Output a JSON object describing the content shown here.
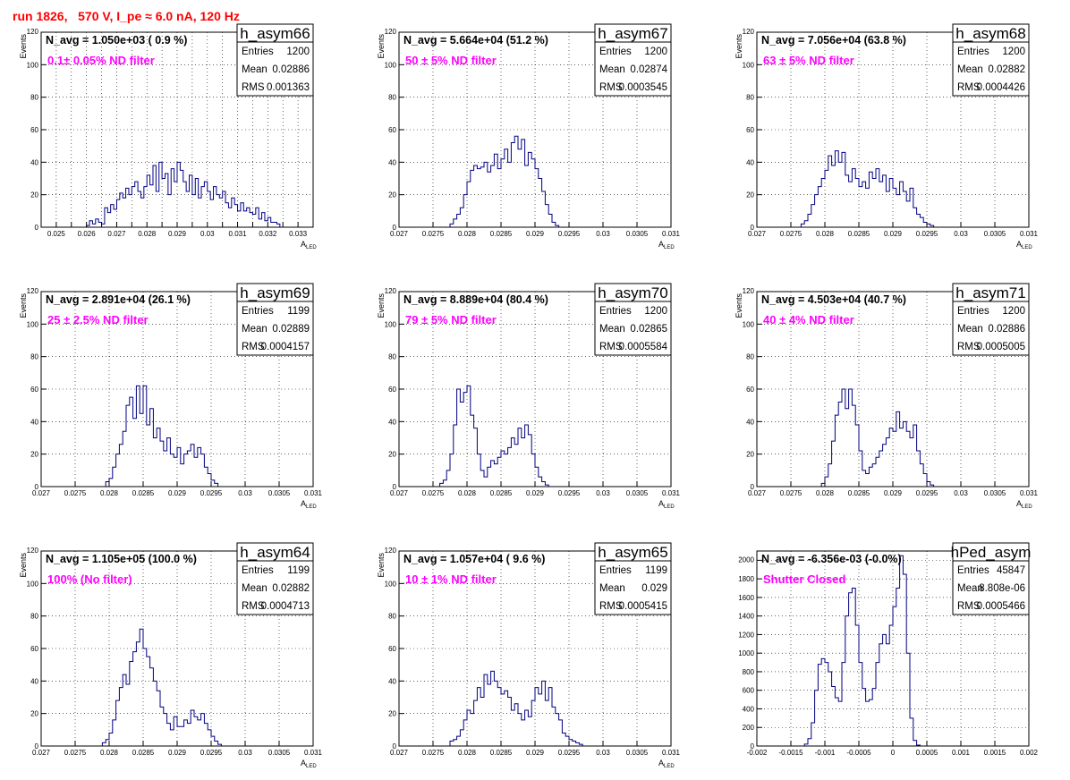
{
  "run_title": "run 1826,   570 V, I_pe ≈ 6.0 nA, 120 Hz",
  "stat_labels": {
    "entries": "Entries",
    "mean": "Mean",
    "rms": "RMS"
  },
  "chart_data": [
    {
      "type": "histogram",
      "name": "h_asym66",
      "navg": "N_avg = 1.050e+03 ( 0.9 %)",
      "filter": "0.1± 0.05% ND filter",
      "entries": "1200",
      "mean": "0.02886",
      "rms": "0.001363",
      "xlabel": "A",
      "xlabel_sub": "LED",
      "ylabel": "Events",
      "xlim": [
        0.0245,
        0.0335
      ],
      "ylim": [
        0,
        120
      ],
      "xticks": [
        0.025,
        0.0255,
        0.026,
        0.0265,
        0.027,
        0.0275,
        0.028,
        0.0285,
        0.029,
        0.0295,
        0.03,
        0.0305,
        0.031,
        0.0315,
        0.032,
        0.0325,
        0.033
      ],
      "xticklabels": [
        "0.025",
        "",
        "0.026",
        "",
        "0.027",
        "",
        "0.028",
        "",
        "0.029",
        "",
        "0.03",
        "",
        "0.031",
        "",
        "0.032",
        "",
        "0.033"
      ],
      "yticks": [
        0,
        20,
        40,
        60,
        80,
        100,
        120
      ],
      "bins": {
        "start": 0.026,
        "width": 0.0001,
        "counts": [
          1,
          4,
          2,
          5,
          3,
          2,
          12,
          9,
          14,
          11,
          17,
          21,
          18,
          24,
          20,
          25,
          28,
          22,
          18,
          25,
          32,
          26,
          38,
          22,
          40,
          30,
          33,
          20,
          36,
          28,
          40,
          35,
          28,
          22,
          32,
          20,
          30,
          18,
          25,
          28,
          22,
          17,
          25,
          20,
          18,
          22,
          15,
          12,
          18,
          14,
          10,
          15,
          10,
          12,
          9,
          8,
          12,
          5,
          9,
          4,
          6,
          3,
          3,
          2
        ]
      }
    },
    {
      "type": "histogram",
      "name": "h_asym67",
      "navg": "N_avg = 5.664e+04 (51.2 %)",
      "filter": "50 ± 5% ND filter",
      "entries": "1200",
      "mean": "0.02874",
      "rms": "0.0003545",
      "xlabel": "A",
      "xlabel_sub": "LED",
      "ylabel": "Events",
      "xlim": [
        0.027,
        0.031
      ],
      "ylim": [
        0,
        120
      ],
      "xticks": [
        0.027,
        0.0275,
        0.028,
        0.0285,
        0.029,
        0.0295,
        0.03,
        0.0305,
        0.031
      ],
      "xticklabels": [
        "0.027",
        "0.0275",
        "0.028",
        "0.0285",
        "0.029",
        "0.0295",
        "0.03",
        "0.0305",
        "0.031"
      ],
      "yticks": [
        0,
        20,
        40,
        60,
        80,
        100,
        120
      ],
      "bins": {
        "start": 0.02775,
        "width": 5e-05,
        "counts": [
          2,
          5,
          8,
          12,
          20,
          28,
          35,
          38,
          36,
          37,
          40,
          34,
          38,
          45,
          36,
          42,
          48,
          40,
          52,
          56,
          48,
          54,
          38,
          46,
          42,
          36,
          30,
          22,
          14,
          8,
          3,
          1
        ]
      }
    },
    {
      "type": "histogram",
      "name": "h_asym68",
      "navg": "N_avg = 7.056e+04 (63.8 %)",
      "filter": "63 ± 5% ND filter",
      "entries": "1200",
      "mean": "0.02882",
      "rms": "0.0004426",
      "xlabel": "A",
      "xlabel_sub": "LED",
      "ylabel": "Events",
      "xlim": [
        0.027,
        0.031
      ],
      "ylim": [
        0,
        120
      ],
      "xticks": [
        0.027,
        0.0275,
        0.028,
        0.0285,
        0.029,
        0.0295,
        0.03,
        0.0305,
        0.031
      ],
      "xticklabels": [
        "0.027",
        "0.0275",
        "0.028",
        "0.0285",
        "0.029",
        "0.0295",
        "0.03",
        "0.0305",
        "0.031"
      ],
      "yticks": [
        0,
        20,
        40,
        60,
        80,
        100,
        120
      ],
      "bins": {
        "start": 0.02765,
        "width": 5e-05,
        "counts": [
          2,
          4,
          8,
          14,
          20,
          25,
          30,
          35,
          44,
          38,
          47,
          40,
          46,
          32,
          28,
          36,
          30,
          25,
          28,
          24,
          34,
          30,
          36,
          28,
          32,
          22,
          30,
          24,
          20,
          28,
          22,
          16,
          24,
          12,
          8,
          6,
          3,
          2,
          1
        ]
      }
    },
    {
      "type": "histogram",
      "name": "h_asym69",
      "navg": "N_avg = 2.891e+04 (26.1 %)",
      "filter": "25 ± 2.5% ND filter",
      "entries": "1199",
      "mean": "0.02889",
      "rms": "0.0004157",
      "xlabel": "A",
      "xlabel_sub": "LED",
      "ylabel": "Events",
      "xlim": [
        0.027,
        0.031
      ],
      "ylim": [
        0,
        120
      ],
      "xticks": [
        0.027,
        0.0275,
        0.028,
        0.0285,
        0.029,
        0.0295,
        0.03,
        0.0305,
        0.031
      ],
      "xticklabels": [
        "0.027",
        "0.0275",
        "0.028",
        "0.0285",
        "0.029",
        "0.0295",
        "0.03",
        "0.0305",
        "0.031"
      ],
      "yticks": [
        0,
        20,
        40,
        60,
        80,
        100,
        120
      ],
      "bins": {
        "start": 0.02795,
        "width": 5e-05,
        "counts": [
          3,
          5,
          12,
          20,
          26,
          34,
          50,
          55,
          42,
          62,
          45,
          62,
          38,
          48,
          30,
          36,
          28,
          22,
          30,
          20,
          18,
          24,
          14,
          20,
          22,
          26,
          18,
          24,
          20,
          12,
          8,
          4,
          2
        ]
      }
    },
    {
      "type": "histogram",
      "name": "h_asym70",
      "navg": "N_avg = 8.889e+04 (80.4 %)",
      "filter": "79 ± 5% ND filter",
      "entries": "1200",
      "mean": "0.02865",
      "rms": "0.0005584",
      "xlabel": "A",
      "xlabel_sub": "LED",
      "ylabel": "Events",
      "xlim": [
        0.027,
        0.031
      ],
      "ylim": [
        0,
        120
      ],
      "xticks": [
        0.027,
        0.0275,
        0.028,
        0.0285,
        0.029,
        0.0295,
        0.03,
        0.0305,
        0.031
      ],
      "xticklabels": [
        "0.027",
        "0.0275",
        "0.028",
        "0.0285",
        "0.029",
        "0.0295",
        "0.03",
        "0.0305",
        "0.031"
      ],
      "yticks": [
        0,
        20,
        40,
        60,
        80,
        100,
        120
      ],
      "bins": {
        "start": 0.0276,
        "width": 5e-05,
        "counts": [
          2,
          4,
          10,
          20,
          38,
          60,
          52,
          58,
          62,
          44,
          36,
          20,
          10,
          6,
          12,
          16,
          14,
          18,
          22,
          20,
          24,
          30,
          26,
          36,
          30,
          38,
          32,
          20,
          12,
          6,
          3,
          1
        ]
      }
    },
    {
      "type": "histogram",
      "name": "h_asym71",
      "navg": "N_avg = 4.503e+04 (40.7 %)",
      "filter": "40 ± 4% ND filter",
      "entries": "1200",
      "mean": "0.02886",
      "rms": "0.0005005",
      "xlabel": "A",
      "xlabel_sub": "LED",
      "ylabel": "Events",
      "xlim": [
        0.027,
        0.031
      ],
      "ylim": [
        0,
        120
      ],
      "xticks": [
        0.027,
        0.0275,
        0.028,
        0.0285,
        0.029,
        0.0295,
        0.03,
        0.0305,
        0.031
      ],
      "xticklabels": [
        "0.027",
        "0.0275",
        "0.028",
        "0.0285",
        "0.029",
        "0.0295",
        "0.03",
        "0.0305",
        "0.031"
      ],
      "yticks": [
        0,
        20,
        40,
        60,
        80,
        100,
        120
      ],
      "bins": {
        "start": 0.02795,
        "width": 5e-05,
        "counts": [
          2,
          6,
          14,
          28,
          44,
          52,
          60,
          48,
          60,
          50,
          38,
          22,
          10,
          8,
          12,
          14,
          18,
          22,
          26,
          30,
          36,
          34,
          46,
          36,
          40,
          34,
          30,
          38,
          22,
          14,
          8,
          3,
          1
        ]
      }
    },
    {
      "type": "histogram",
      "name": "h_asym64",
      "navg": "N_avg = 1.105e+05 (100.0 %)",
      "filter": "100% (No filter)",
      "entries": "1199",
      "mean": "0.02882",
      "rms": "0.0004713",
      "xlabel": "A",
      "xlabel_sub": "LED",
      "ylabel": "Events",
      "xlim": [
        0.027,
        0.031
      ],
      "ylim": [
        0,
        120
      ],
      "xticks": [
        0.027,
        0.0275,
        0.028,
        0.0285,
        0.029,
        0.0295,
        0.03,
        0.0305,
        0.031
      ],
      "xticklabels": [
        "0.027",
        "0.0275",
        "0.028",
        "0.0285",
        "0.029",
        "0.0295",
        "0.03",
        "0.0305",
        "0.031"
      ],
      "yticks": [
        0,
        20,
        40,
        60,
        80,
        100,
        120
      ],
      "bins": {
        "start": 0.0279,
        "width": 5e-05,
        "counts": [
          2,
          4,
          8,
          16,
          28,
          36,
          44,
          38,
          52,
          58,
          64,
          72,
          60,
          55,
          48,
          40,
          34,
          24,
          20,
          14,
          10,
          18,
          12,
          12,
          16,
          14,
          22,
          18,
          16,
          20,
          14,
          10,
          6,
          3,
          1
        ]
      }
    },
    {
      "type": "histogram",
      "name": "h_asym65",
      "navg": "N_avg = 1.057e+04 ( 9.6 %)",
      "filter": "10 ± 1% ND filter",
      "entries": "1199",
      "mean": "0.029",
      "rms": "0.0005415",
      "xlabel": "A",
      "xlabel_sub": "LED",
      "ylabel": "Events",
      "xlim": [
        0.027,
        0.031
      ],
      "ylim": [
        0,
        120
      ],
      "xticks": [
        0.027,
        0.0275,
        0.028,
        0.0285,
        0.029,
        0.0295,
        0.03,
        0.0305,
        0.031
      ],
      "xticklabels": [
        "0.027",
        "0.0275",
        "0.028",
        "0.0285",
        "0.029",
        "0.0295",
        "0.03",
        "0.0305",
        "0.031"
      ],
      "yticks": [
        0,
        20,
        40,
        60,
        80,
        100,
        120
      ],
      "bins": {
        "start": 0.02775,
        "width": 5e-05,
        "counts": [
          3,
          4,
          6,
          10,
          16,
          22,
          20,
          28,
          36,
          30,
          44,
          38,
          46,
          40,
          36,
          32,
          34,
          30,
          22,
          26,
          20,
          16,
          22,
          18,
          28,
          36,
          32,
          40,
          28,
          36,
          24,
          20,
          16,
          8,
          6,
          4,
          3,
          2,
          1
        ]
      }
    },
    {
      "type": "histogram",
      "name": "hPed_asym",
      "navg": "N_avg = -6.356e-03 (-0.0%)",
      "filter": "Shutter Closed",
      "entries": "45847",
      "mean": "8.808e-06",
      "rms": "0.0005466",
      "xlabel": "",
      "xlabel_sub": "",
      "ylabel": "",
      "xlim": [
        -0.002,
        0.002
      ],
      "ylim": [
        0,
        2100
      ],
      "xticks": [
        -0.002,
        -0.0015,
        -0.001,
        -0.0005,
        0,
        0.0005,
        0.001,
        0.0015,
        0.002
      ],
      "xticklabels": [
        "-0.002",
        "-0.0015",
        "-0.001",
        "-0.0005",
        "0",
        "0.0005",
        "0.001",
        "0.0015",
        "0.002"
      ],
      "yticks": [
        0,
        200,
        400,
        600,
        800,
        1000,
        1200,
        1400,
        1600,
        1800,
        2000
      ],
      "bins": {
        "start": -0.0013,
        "width": 5e-05,
        "counts": [
          20,
          80,
          250,
          600,
          880,
          940,
          900,
          800,
          640,
          520,
          480,
          900,
          1400,
          1650,
          1700,
          1300,
          900,
          620,
          480,
          500,
          620,
          900,
          1100,
          1200,
          1100,
          1300,
          1500,
          1700,
          2050,
          1850,
          1000,
          300,
          60,
          10
        ]
      }
    }
  ]
}
